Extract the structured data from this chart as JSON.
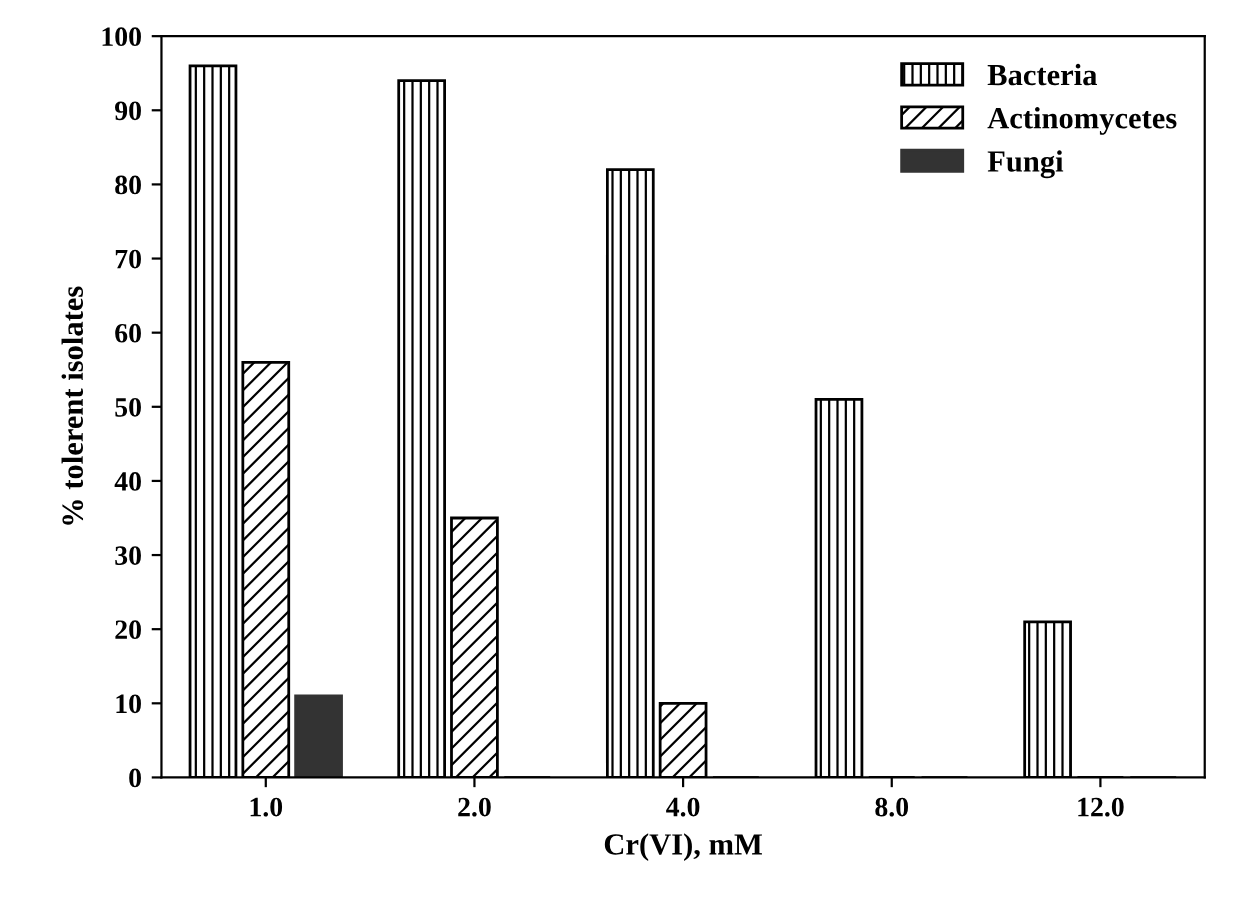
{
  "chart_data": {
    "type": "bar",
    "xlabel": "Cr(VI), mM",
    "ylabel": "% tolerent isolates",
    "categories": [
      "1.0",
      "2.0",
      "4.0",
      "8.0",
      "12.0"
    ],
    "series": [
      {
        "name": "Bacteria",
        "color": "#000000",
        "values": [
          96,
          94,
          82,
          51,
          21
        ]
      },
      {
        "name": "Actinomycetes",
        "color": "#000000",
        "values": [
          56,
          35,
          10,
          0,
          0
        ]
      },
      {
        "name": "Fungi",
        "color": "#333333",
        "values": [
          11,
          0,
          0,
          0,
          0
        ]
      }
    ],
    "ylim": [
      0,
      100
    ],
    "yticks": [
      0,
      10,
      20,
      30,
      40,
      50,
      60,
      70,
      80,
      90,
      100
    ],
    "grid": false,
    "legend": "top right"
  }
}
